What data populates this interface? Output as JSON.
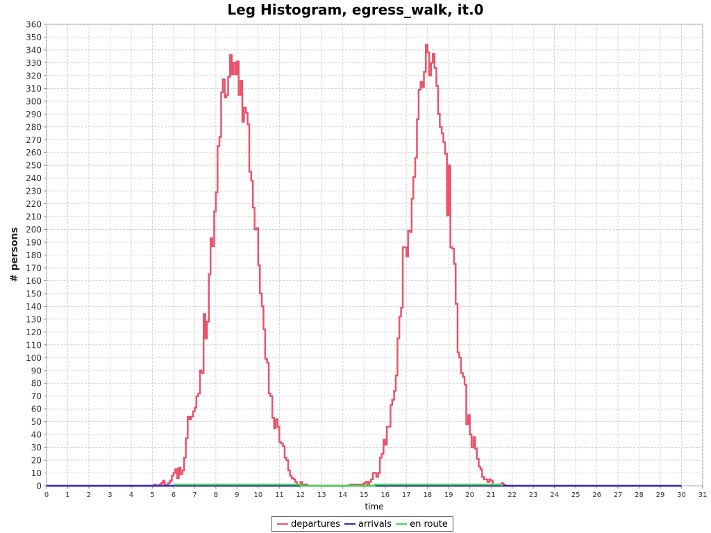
{
  "chart_data": {
    "type": "line",
    "title": "Leg Histogram, egress_walk, it.0",
    "xlabel": "time",
    "ylabel": "# persons",
    "xlim": [
      0,
      31
    ],
    "ylim": [
      0,
      360
    ],
    "xticks": [
      0,
      1,
      2,
      3,
      4,
      5,
      6,
      7,
      8,
      9,
      10,
      11,
      12,
      13,
      14,
      15,
      16,
      17,
      18,
      19,
      20,
      21,
      22,
      23,
      24,
      25,
      26,
      27,
      28,
      29,
      30,
      31
    ],
    "yticks": [
      0,
      10,
      20,
      30,
      40,
      50,
      60,
      70,
      80,
      90,
      100,
      110,
      120,
      130,
      140,
      150,
      160,
      170,
      180,
      190,
      200,
      210,
      220,
      230,
      240,
      250,
      260,
      270,
      280,
      290,
      300,
      310,
      320,
      330,
      340,
      350,
      360
    ],
    "grid": true,
    "legend_position": "bottom-center",
    "series": [
      {
        "name": "departures",
        "color": "#e8546b",
        "style": "step",
        "points": [
          [
            0,
            0
          ],
          [
            5.0,
            0
          ],
          [
            5.08,
            1
          ],
          [
            5.17,
            0
          ],
          [
            5.33,
            1
          ],
          [
            5.42,
            2
          ],
          [
            5.5,
            4
          ],
          [
            5.58,
            1
          ],
          [
            5.67,
            0
          ],
          [
            5.75,
            2
          ],
          [
            5.83,
            4
          ],
          [
            5.92,
            8
          ],
          [
            6.0,
            10
          ],
          [
            6.08,
            13
          ],
          [
            6.17,
            6
          ],
          [
            6.25,
            14
          ],
          [
            6.33,
            9
          ],
          [
            6.42,
            12
          ],
          [
            6.5,
            22
          ],
          [
            6.58,
            37
          ],
          [
            6.67,
            54
          ],
          [
            6.75,
            52
          ],
          [
            6.83,
            54
          ],
          [
            6.92,
            58
          ],
          [
            7.0,
            61
          ],
          [
            7.08,
            70
          ],
          [
            7.17,
            72
          ],
          [
            7.25,
            90
          ],
          [
            7.33,
            88
          ],
          [
            7.42,
            134
          ],
          [
            7.5,
            115
          ],
          [
            7.58,
            128
          ],
          [
            7.67,
            165
          ],
          [
            7.75,
            193
          ],
          [
            7.83,
            187
          ],
          [
            7.92,
            214
          ],
          [
            8.0,
            229
          ],
          [
            8.08,
            265
          ],
          [
            8.17,
            272
          ],
          [
            8.25,
            307
          ],
          [
            8.33,
            317
          ],
          [
            8.42,
            303
          ],
          [
            8.5,
            305
          ],
          [
            8.58,
            319
          ],
          [
            8.67,
            336
          ],
          [
            8.75,
            321
          ],
          [
            8.83,
            330
          ],
          [
            8.92,
            321
          ],
          [
            9.0,
            331
          ],
          [
            9.08,
            305
          ],
          [
            9.17,
            316
          ],
          [
            9.25,
            284
          ],
          [
            9.33,
            295
          ],
          [
            9.42,
            291
          ],
          [
            9.5,
            282
          ],
          [
            9.58,
            245
          ],
          [
            9.67,
            238
          ],
          [
            9.75,
            217
          ],
          [
            9.83,
            200
          ],
          [
            9.92,
            201
          ],
          [
            10.0,
            172
          ],
          [
            10.08,
            150
          ],
          [
            10.17,
            140
          ],
          [
            10.25,
            122
          ],
          [
            10.33,
            99
          ],
          [
            10.42,
            96
          ],
          [
            10.5,
            72
          ],
          [
            10.58,
            70
          ],
          [
            10.67,
            53
          ],
          [
            10.75,
            45
          ],
          [
            10.83,
            52
          ],
          [
            10.92,
            46
          ],
          [
            11.0,
            34
          ],
          [
            11.08,
            33
          ],
          [
            11.17,
            31
          ],
          [
            11.25,
            22
          ],
          [
            11.33,
            20
          ],
          [
            11.42,
            12
          ],
          [
            11.5,
            8
          ],
          [
            11.58,
            6
          ],
          [
            11.67,
            5
          ],
          [
            11.75,
            3
          ],
          [
            11.83,
            1
          ],
          [
            11.92,
            0
          ],
          [
            12.0,
            3
          ],
          [
            12.08,
            1
          ],
          [
            12.17,
            0
          ],
          [
            12.25,
            1
          ],
          [
            12.33,
            0
          ],
          [
            14.33,
            1
          ],
          [
            14.42,
            1
          ],
          [
            14.92,
            0
          ],
          [
            15.0,
            2
          ],
          [
            15.08,
            3
          ],
          [
            15.17,
            0
          ],
          [
            15.25,
            3
          ],
          [
            15.33,
            5
          ],
          [
            15.42,
            10
          ],
          [
            15.58,
            7
          ],
          [
            15.67,
            10
          ],
          [
            15.75,
            22
          ],
          [
            15.83,
            25
          ],
          [
            15.92,
            36
          ],
          [
            16.0,
            32
          ],
          [
            16.08,
            46
          ],
          [
            16.25,
            63
          ],
          [
            16.33,
            67
          ],
          [
            16.42,
            74
          ],
          [
            16.5,
            86
          ],
          [
            16.58,
            115
          ],
          [
            16.67,
            132
          ],
          [
            16.75,
            139
          ],
          [
            16.83,
            186
          ],
          [
            17.0,
            179
          ],
          [
            17.08,
            199
          ],
          [
            17.17,
            198
          ],
          [
            17.25,
            224
          ],
          [
            17.33,
            241
          ],
          [
            17.42,
            256
          ],
          [
            17.5,
            286
          ],
          [
            17.58,
            309
          ],
          [
            17.67,
            315
          ],
          [
            17.75,
            311
          ],
          [
            17.83,
            323
          ],
          [
            17.92,
            344
          ],
          [
            18.0,
            338
          ],
          [
            18.08,
            320
          ],
          [
            18.17,
            330
          ],
          [
            18.25,
            337
          ],
          [
            18.33,
            326
          ],
          [
            18.42,
            312
          ],
          [
            18.5,
            290
          ],
          [
            18.58,
            280
          ],
          [
            18.67,
            275
          ],
          [
            18.75,
            268
          ],
          [
            18.83,
            259
          ],
          [
            18.92,
            211
          ],
          [
            19.0,
            250
          ],
          [
            19.08,
            186
          ],
          [
            19.17,
            185
          ],
          [
            19.25,
            173
          ],
          [
            19.33,
            142
          ],
          [
            19.42,
            104
          ],
          [
            19.5,
            100
          ],
          [
            19.58,
            88
          ],
          [
            19.67,
            85
          ],
          [
            19.75,
            79
          ],
          [
            19.83,
            48
          ],
          [
            19.92,
            55
          ],
          [
            20.0,
            40
          ],
          [
            20.08,
            30
          ],
          [
            20.17,
            38
          ],
          [
            20.25,
            29
          ],
          [
            20.33,
            21
          ],
          [
            20.42,
            15
          ],
          [
            20.5,
            13
          ],
          [
            20.58,
            7
          ],
          [
            20.67,
            5
          ],
          [
            20.75,
            5
          ],
          [
            20.83,
            3
          ],
          [
            20.92,
            5
          ],
          [
            21.0,
            4
          ],
          [
            21.08,
            0
          ],
          [
            21.17,
            1
          ],
          [
            21.5,
            2
          ],
          [
            21.58,
            1
          ],
          [
            21.67,
            0
          ],
          [
            30.0,
            0
          ]
        ]
      },
      {
        "name": "arrivals",
        "color": "#2c2cbd",
        "style": "step",
        "points": [
          [
            0,
            0
          ],
          [
            30.0,
            0
          ]
        ]
      },
      {
        "name": "en route",
        "color": "#4bd64b",
        "style": "step",
        "points": [
          [
            6.0,
            1
          ],
          [
            12.0,
            0
          ],
          [
            15.5,
            1
          ],
          [
            21.5,
            0
          ]
        ]
      }
    ]
  }
}
